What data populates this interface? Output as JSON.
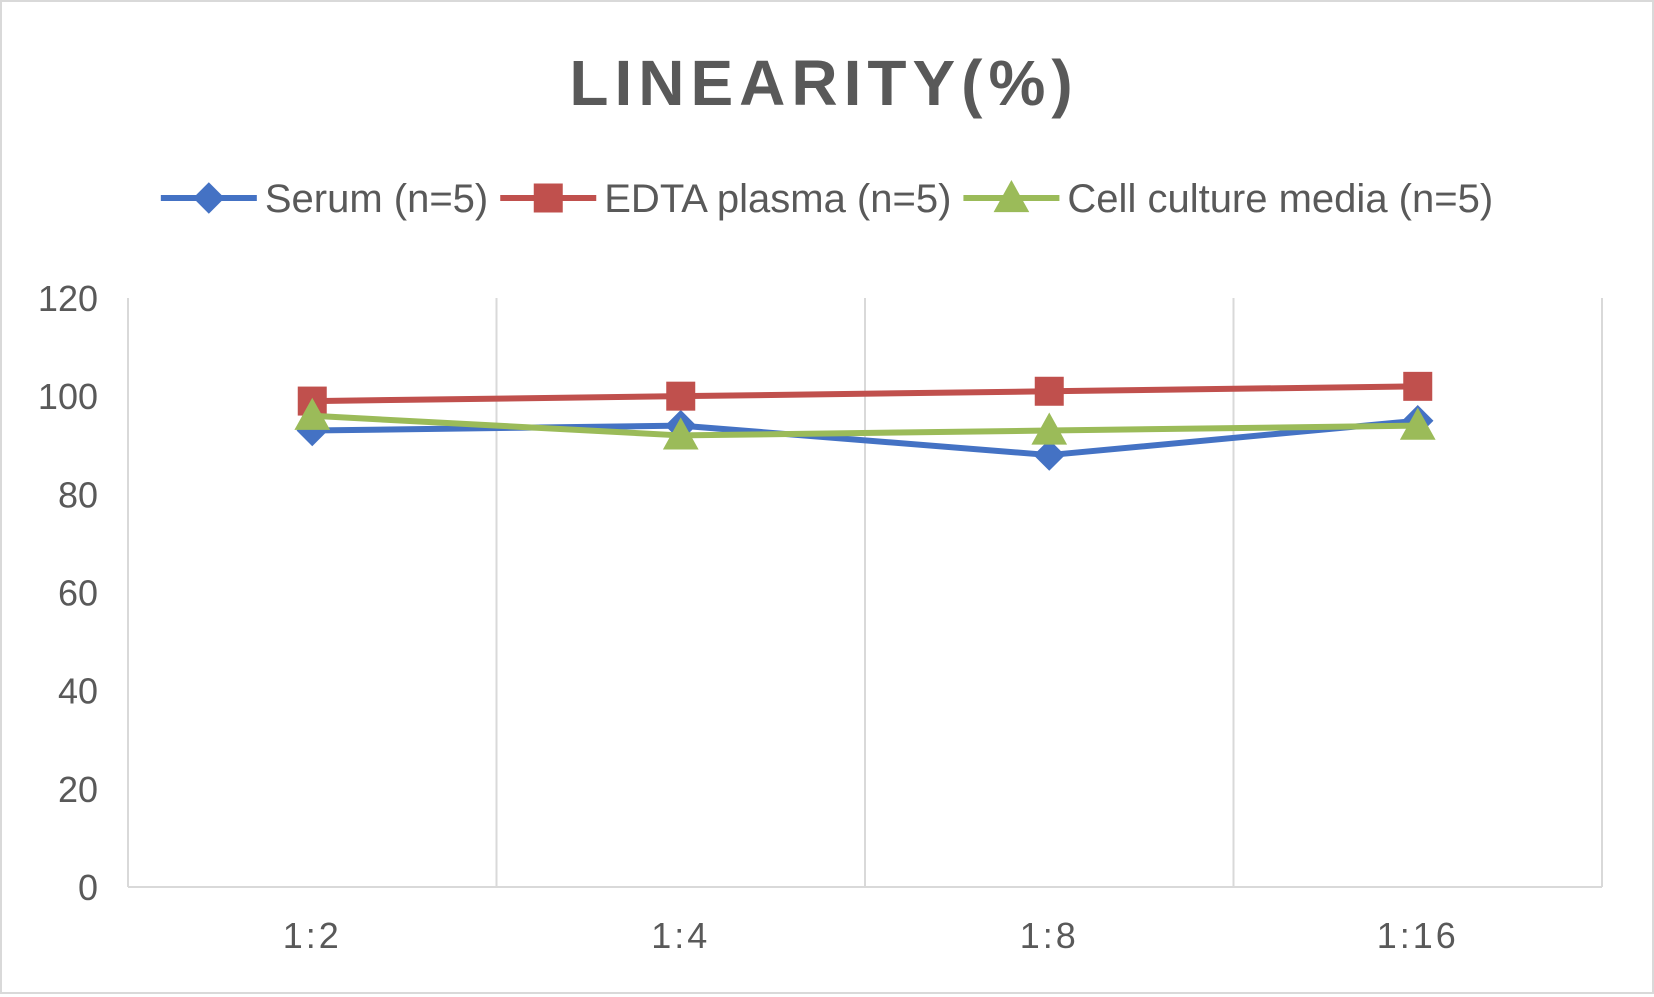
{
  "chart_data": {
    "type": "line",
    "title": "LINEARITY(%)",
    "xlabel": "",
    "ylabel": "",
    "categories": [
      "1:2",
      "1:4",
      "1:8",
      "1:16"
    ],
    "ylim": [
      0,
      120
    ],
    "yticks": [
      0,
      20,
      40,
      60,
      80,
      100,
      120
    ],
    "ytick_labels": [
      "0",
      "20",
      "40",
      "60",
      "80",
      "100",
      "120"
    ],
    "grid": "vertical",
    "legend_position": "top",
    "series": [
      {
        "name": "Serum (n=5)",
        "values": [
          93,
          94,
          88,
          95
        ],
        "color": "#4472C4",
        "marker": "diamond"
      },
      {
        "name": "EDTA plasma (n=5)",
        "values": [
          99,
          100,
          101,
          102
        ],
        "color": "#C0504D",
        "marker": "square"
      },
      {
        "name": "Cell culture media (n=5)",
        "values": [
          96,
          92,
          93,
          94
        ],
        "color": "#9BBB59",
        "marker": "triangle"
      }
    ]
  }
}
